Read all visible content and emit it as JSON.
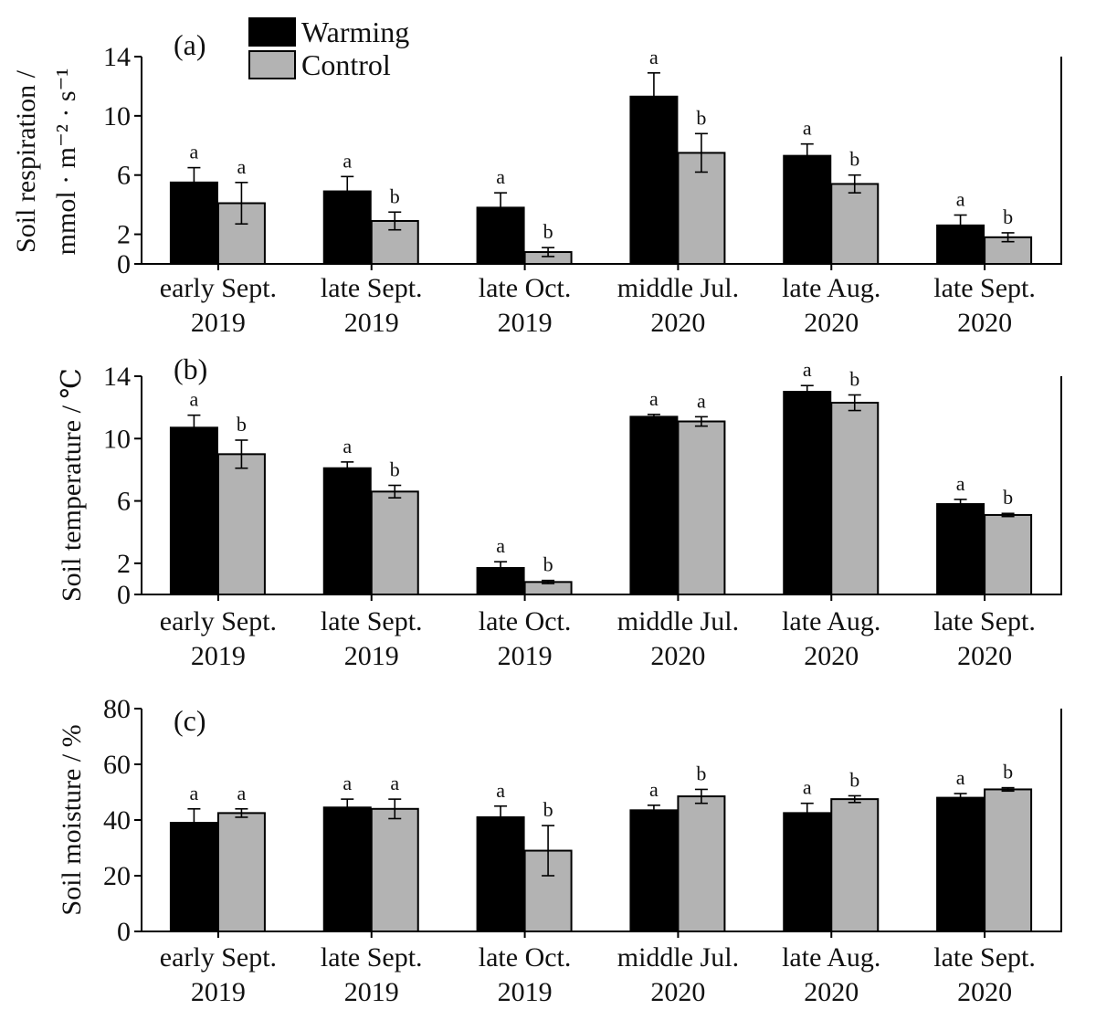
{
  "legend": [
    {
      "name": "Warming",
      "color": "#000000"
    },
    {
      "name": "Control",
      "color": "#b3b3b3"
    }
  ],
  "chart_data": [
    {
      "type": "bar",
      "panel_label": "(a)",
      "ylabel_lines": [
        "Soil respiration /",
        "mmol · m⁻² · s⁻¹"
      ],
      "ylim": [
        0,
        14
      ],
      "yticks": [
        0,
        2,
        6,
        10,
        14
      ],
      "categories": [
        [
          "early Sept.",
          "2019"
        ],
        [
          "late Sept.",
          "2019"
        ],
        [
          "late Oct.",
          "2019"
        ],
        [
          "middle Jul.",
          "2020"
        ],
        [
          "late Aug.",
          "2020"
        ],
        [
          "late Sept.",
          "2020"
        ]
      ],
      "series": [
        {
          "name": "Warming",
          "values": [
            5.5,
            4.9,
            3.8,
            11.3,
            7.3,
            2.6
          ],
          "errors": [
            1.0,
            1.0,
            1.0,
            1.6,
            0.8,
            0.7
          ],
          "letters": [
            "a",
            "a",
            "a",
            "a",
            "a",
            "a"
          ]
        },
        {
          "name": "Control",
          "values": [
            4.1,
            2.9,
            0.8,
            7.5,
            5.4,
            1.8
          ],
          "errors": [
            1.4,
            0.6,
            0.3,
            1.3,
            0.6,
            0.3
          ],
          "letters": [
            "a",
            "b",
            "b",
            "b",
            "b",
            "b"
          ]
        }
      ]
    },
    {
      "type": "bar",
      "panel_label": "(b)",
      "ylabel_lines": [
        "Soil temperature / ℃"
      ],
      "ylim": [
        0,
        14
      ],
      "yticks": [
        0,
        2,
        6,
        10,
        14
      ],
      "categories": [
        [
          "early Sept.",
          "2019"
        ],
        [
          "late Sept.",
          "2019"
        ],
        [
          "late Oct.",
          "2019"
        ],
        [
          "middle Jul.",
          "2020"
        ],
        [
          "late Aug.",
          "2020"
        ],
        [
          "late Sept.",
          "2020"
        ]
      ],
      "series": [
        {
          "name": "Warming",
          "values": [
            10.7,
            8.1,
            1.7,
            11.4,
            13.0,
            5.8
          ],
          "errors": [
            0.8,
            0.4,
            0.4,
            0.15,
            0.4,
            0.3
          ],
          "letters": [
            "a",
            "a",
            "a",
            "a",
            "a",
            "a"
          ]
        },
        {
          "name": "Control",
          "values": [
            9.0,
            6.6,
            0.8,
            11.1,
            12.3,
            5.1
          ],
          "errors": [
            0.9,
            0.4,
            0.1,
            0.3,
            0.5,
            0.1
          ],
          "letters": [
            "b",
            "b",
            "b",
            "a",
            "b",
            "b"
          ]
        }
      ]
    },
    {
      "type": "bar",
      "panel_label": "(c)",
      "ylabel_lines": [
        "Soil moisture / %"
      ],
      "ylim": [
        0,
        80
      ],
      "yticks": [
        0,
        20,
        40,
        60,
        80
      ],
      "categories": [
        [
          "early Sept.",
          "2019"
        ],
        [
          "late Sept.",
          "2019"
        ],
        [
          "late Oct.",
          "2019"
        ],
        [
          "middle Jul.",
          "2020"
        ],
        [
          "late Aug.",
          "2020"
        ],
        [
          "late Sept.",
          "2020"
        ]
      ],
      "series": [
        {
          "name": "Warming",
          "values": [
            39,
            44.5,
            41,
            43.5,
            42.5,
            48
          ],
          "errors": [
            5,
            3,
            4,
            1.8,
            3.5,
            1.5
          ],
          "letters": [
            "a",
            "a",
            "a",
            "a",
            "a",
            "a"
          ]
        },
        {
          "name": "Control",
          "values": [
            42.5,
            44,
            29,
            48.5,
            47.5,
            51
          ],
          "errors": [
            1.5,
            3.5,
            9,
            2.5,
            1.2,
            0.6
          ],
          "letters": [
            "a",
            "a",
            "b",
            "b",
            "b",
            "b"
          ]
        }
      ]
    }
  ]
}
